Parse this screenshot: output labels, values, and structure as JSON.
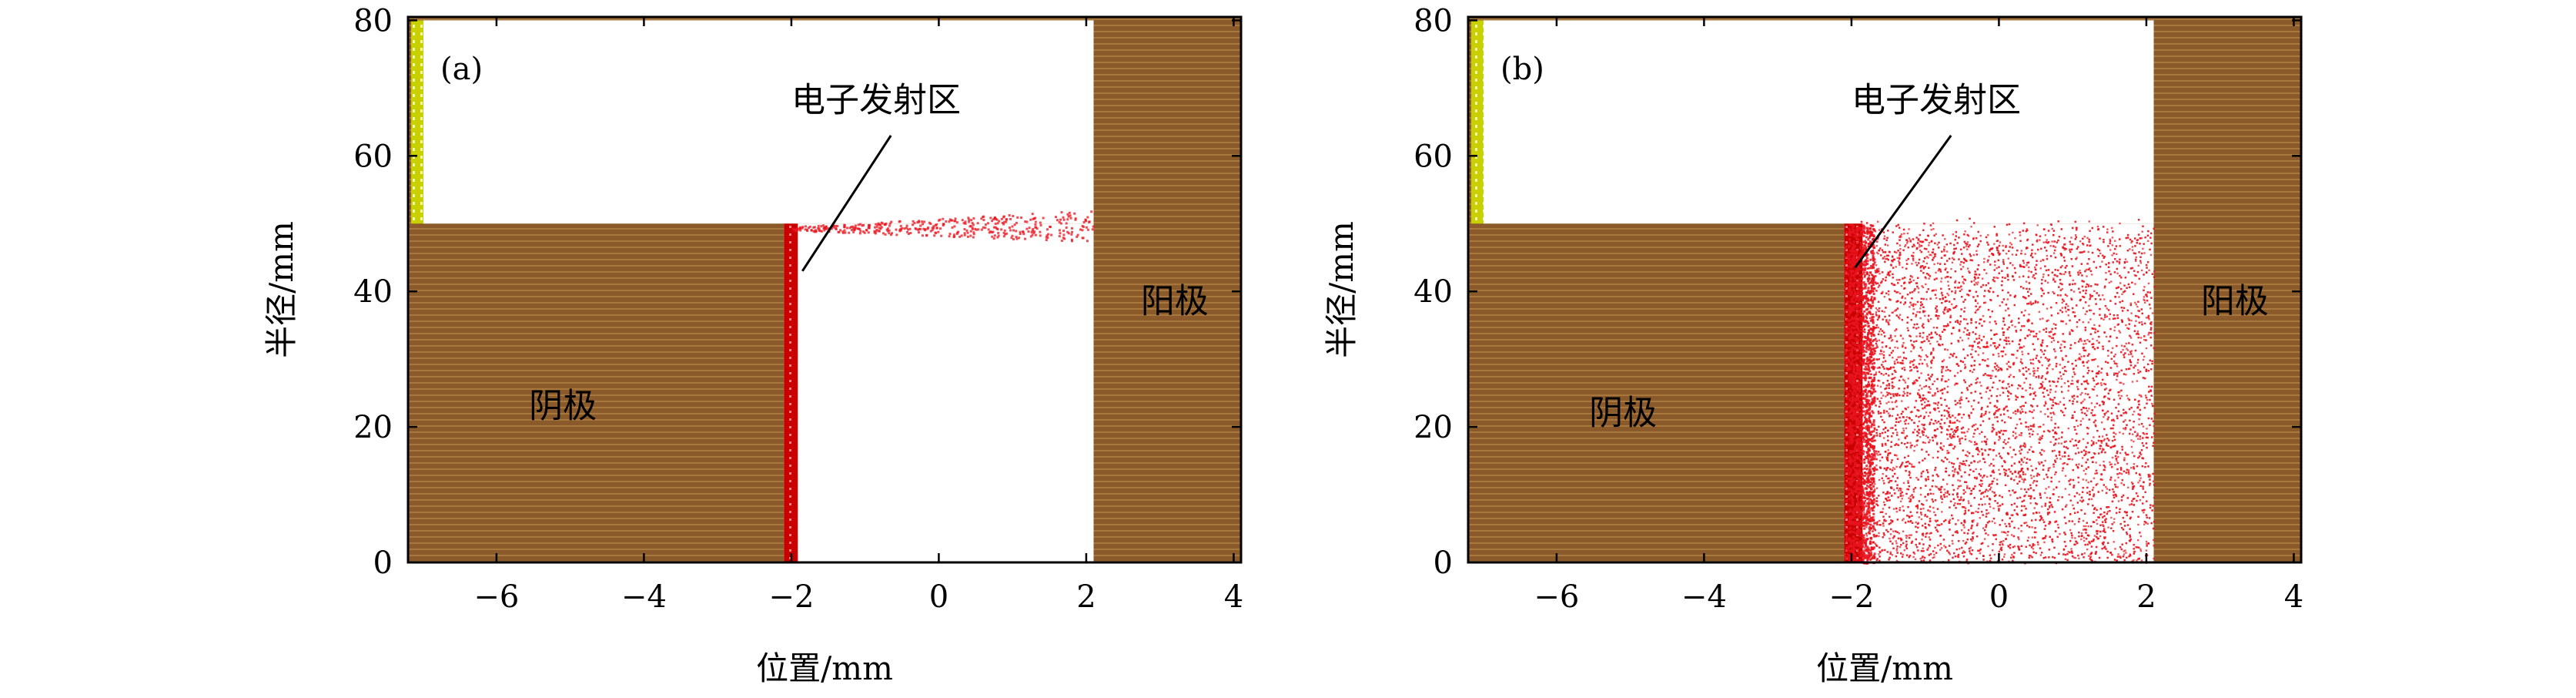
{
  "colors": {
    "electrode": "#8B5A2B",
    "electrode_stripe": "#A8783F",
    "emitter": "#D40000",
    "electron": "#E8141E",
    "insulator": "#C9D000",
    "frame": "#000000"
  },
  "chart_data": [
    {
      "type": "scatter",
      "panel_label": "(a)",
      "xlabel": "位置/mm",
      "ylabel": "半径/mm",
      "xlim": [
        -7.2,
        4.1
      ],
      "ylim": [
        0,
        80.5
      ],
      "x_ticks": [
        -6,
        -4,
        -2,
        0,
        2,
        4
      ],
      "x_tick_labels": [
        "−6",
        "−4",
        "−2",
        "0",
        "2",
        "4"
      ],
      "y_ticks": [
        0,
        20,
        40,
        60,
        80
      ],
      "y_tick_labels": [
        "0",
        "20",
        "40",
        "60",
        "80"
      ],
      "cathode_label": "阴极",
      "anode_label": "阳极",
      "emission_label": "电子发射区",
      "geometry": {
        "cathode_x": [
          -7.2,
          -2.1
        ],
        "cathode_radius_top": 50,
        "anode_x_start": 2.1,
        "chamber_top_radius": 80,
        "emitter_x": [
          -2.1,
          -1.95
        ]
      },
      "electrons": {
        "distribution": "thin sheet along r ≈ 49–54 mm",
        "x_range": [
          -2.0,
          2.1
        ],
        "r_range": [
          48.5,
          54
        ]
      }
    },
    {
      "type": "scatter",
      "panel_label": "(b)",
      "xlabel": "位置/mm",
      "ylabel": "半径/mm",
      "xlim": [
        -7.2,
        4.1
      ],
      "ylim": [
        0,
        80.5
      ],
      "x_ticks": [
        -6,
        -4,
        -2,
        0,
        2,
        4
      ],
      "x_tick_labels": [
        "−6",
        "−4",
        "−2",
        "0",
        "2",
        "4"
      ],
      "y_ticks": [
        0,
        20,
        40,
        60,
        80
      ],
      "y_tick_labels": [
        "0",
        "20",
        "40",
        "60",
        "80"
      ],
      "cathode_label": "阴极",
      "anode_label": "阳极",
      "emission_label": "电子发射区",
      "geometry": {
        "cathode_x": [
          -7.2,
          -2.1
        ],
        "cathode_radius_top": 50,
        "anode_x_start": 2.1,
        "chamber_top_radius": 80,
        "emitter_x": [
          -2.1,
          -1.95
        ]
      },
      "electrons": {
        "distribution": "space filled between cathode face and anode, r 0–51 mm",
        "x_range": [
          -2.1,
          2.1
        ],
        "r_range": [
          0,
          51
        ]
      }
    }
  ]
}
